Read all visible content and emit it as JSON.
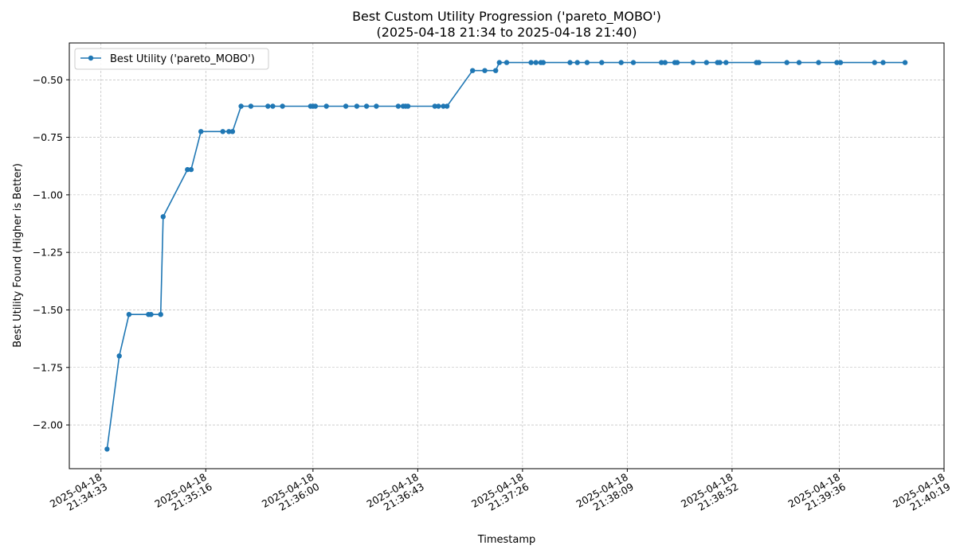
{
  "chart_data": {
    "type": "line",
    "title": "Best Custom Utility Progression ('pareto_MOBO')",
    "subtitle": "(2025-04-18 21:34 to 2025-04-18 21:40)",
    "xlabel": "Timestamp",
    "ylabel": "Best Utility Found (Higher is Better)",
    "x_ticks": [
      {
        "value": 33,
        "line1": "2025-04-18",
        "line2": "21:34:33"
      },
      {
        "value": 76,
        "line1": "2025-04-18",
        "line2": "21:35:16"
      },
      {
        "value": 120,
        "line1": "2025-04-18",
        "line2": "21:36:00"
      },
      {
        "value": 163,
        "line1": "2025-04-18",
        "line2": "21:36:43"
      },
      {
        "value": 206,
        "line1": "2025-04-18",
        "line2": "21:37:26"
      },
      {
        "value": 249,
        "line1": "2025-04-18",
        "line2": "21:38:09"
      },
      {
        "value": 292,
        "line1": "2025-04-18",
        "line2": "21:38:52"
      },
      {
        "value": 336,
        "line1": "2025-04-18",
        "line2": "21:39:36"
      },
      {
        "value": 379,
        "line1": "2025-04-18",
        "line2": "21:40:19"
      }
    ],
    "y_ticks": [
      {
        "value": -2.0,
        "label": "−2.00"
      },
      {
        "value": -1.75,
        "label": "−1.75"
      },
      {
        "value": -1.5,
        "label": "−1.50"
      },
      {
        "value": -1.25,
        "label": "−1.25"
      },
      {
        "value": -1.0,
        "label": "−1.00"
      },
      {
        "value": -0.75,
        "label": "−0.75"
      },
      {
        "value": -0.5,
        "label": "−0.50"
      }
    ],
    "xlim": [
      20,
      379
    ],
    "ylim": [
      -2.19,
      -0.34
    ],
    "grid": true,
    "legend_position": "top-left",
    "color": "#1f77b4",
    "series": [
      {
        "name": "Best Utility ('pareto_MOBO')",
        "points": [
          [
            35.5,
            -2.105
          ],
          [
            40.5,
            -1.7
          ],
          [
            44.5,
            -1.52
          ],
          [
            52.5,
            -1.52
          ],
          [
            53.5,
            -1.52
          ],
          [
            57.5,
            -1.52
          ],
          [
            58.5,
            -1.095
          ],
          [
            68.5,
            -0.89
          ],
          [
            70,
            -0.89
          ],
          [
            74,
            -0.725
          ],
          [
            83,
            -0.725
          ],
          [
            85.5,
            -0.725
          ],
          [
            87,
            -0.725
          ],
          [
            90.5,
            -0.615
          ],
          [
            94.5,
            -0.615
          ],
          [
            101.5,
            -0.615
          ],
          [
            103.5,
            -0.615
          ],
          [
            107.5,
            -0.615
          ],
          [
            119,
            -0.615
          ],
          [
            120,
            -0.615
          ],
          [
            121,
            -0.615
          ],
          [
            125.5,
            -0.615
          ],
          [
            133.5,
            -0.615
          ],
          [
            138,
            -0.615
          ],
          [
            142,
            -0.615
          ],
          [
            146,
            -0.615
          ],
          [
            155,
            -0.615
          ],
          [
            157,
            -0.615
          ],
          [
            158,
            -0.615
          ],
          [
            159,
            -0.615
          ],
          [
            170,
            -0.615
          ],
          [
            171.5,
            -0.615
          ],
          [
            173.5,
            -0.615
          ],
          [
            175,
            -0.615
          ],
          [
            185.5,
            -0.46
          ],
          [
            190.5,
            -0.46
          ],
          [
            195,
            -0.46
          ],
          [
            196.5,
            -0.425
          ],
          [
            199.5,
            -0.425
          ],
          [
            209.5,
            -0.425
          ],
          [
            211.5,
            -0.425
          ],
          [
            213.5,
            -0.425
          ],
          [
            214.5,
            -0.425
          ],
          [
            225.5,
            -0.425
          ],
          [
            228.5,
            -0.425
          ],
          [
            232.5,
            -0.425
          ],
          [
            238.5,
            -0.425
          ],
          [
            246.5,
            -0.425
          ],
          [
            251.5,
            -0.425
          ],
          [
            263,
            -0.425
          ],
          [
            264.5,
            -0.425
          ],
          [
            268.5,
            -0.425
          ],
          [
            269.5,
            -0.425
          ],
          [
            276,
            -0.425
          ],
          [
            281.5,
            -0.425
          ],
          [
            286,
            -0.425
          ],
          [
            287,
            -0.425
          ],
          [
            289.5,
            -0.425
          ],
          [
            302,
            -0.425
          ],
          [
            303,
            -0.425
          ],
          [
            314.5,
            -0.425
          ],
          [
            319.5,
            -0.425
          ],
          [
            327.5,
            -0.425
          ],
          [
            335,
            -0.425
          ],
          [
            336.5,
            -0.425
          ],
          [
            350.5,
            -0.425
          ],
          [
            354,
            -0.425
          ],
          [
            363,
            -0.425
          ]
        ]
      }
    ]
  }
}
